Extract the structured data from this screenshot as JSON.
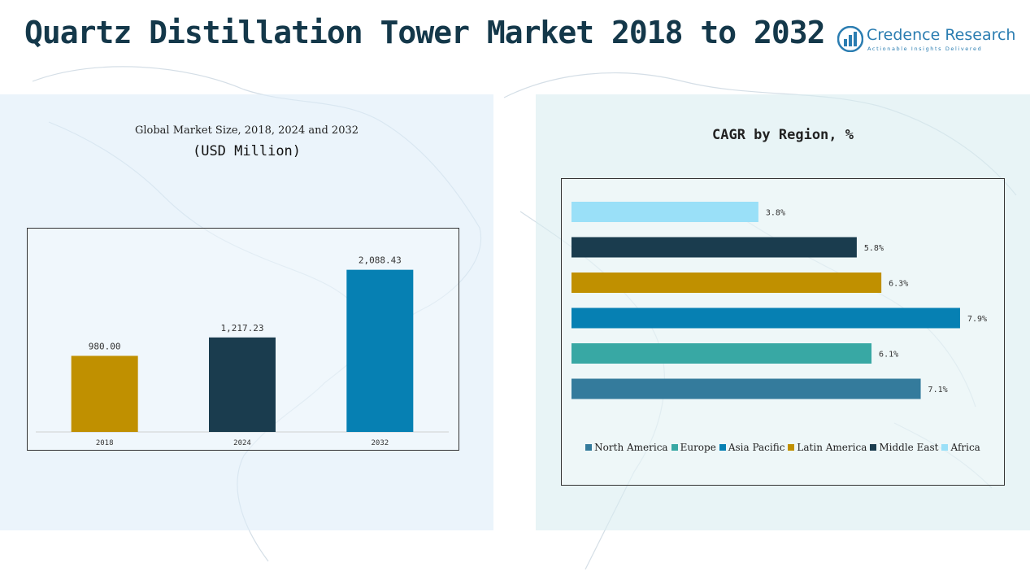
{
  "header": {
    "title": "Quartz Distillation Tower Market 2018 to 2032",
    "brand_name": "Credence Research",
    "brand_tagline": "Actionable Insights Delivered"
  },
  "colors": {
    "title": "#14384a",
    "brand": "#2b7db1",
    "left_panel": "#deecf8",
    "right_panel": "#d8ecf0"
  },
  "chart_data": [
    {
      "type": "bar",
      "title": "Global Market Size, 2018, 2024 and 2032",
      "subtitle": "(USD Million)",
      "categories": [
        "2018",
        "2024",
        "2032"
      ],
      "values": [
        980.0,
        1217.23,
        2088.43
      ],
      "value_labels": [
        "980.00",
        "1,217.23",
        "2,088.43"
      ],
      "colors": [
        "#c09000",
        "#1a3c4e",
        "#0680b3"
      ],
      "ylim": [
        0,
        2200
      ],
      "grid": false,
      "legend": "none"
    },
    {
      "type": "bar",
      "orientation": "horizontal",
      "title": "CAGR by Region, %",
      "categories": [
        "North America",
        "Europe",
        "Asia Pacific",
        "Latin America",
        "Middle East",
        "Africa"
      ],
      "values": [
        7.1,
        6.1,
        7.9,
        6.3,
        5.8,
        3.8
      ],
      "value_labels": [
        "7.1%",
        "6.1%",
        "7.9%",
        "6.3%",
        "5.8%",
        "3.8%"
      ],
      "colors": [
        "#347b9c",
        "#38a8a4",
        "#0680b3",
        "#c09000",
        "#1a3c4e",
        "#9ae0f8"
      ],
      "xlim": [
        0,
        8.0
      ],
      "grid": false,
      "legend": "bottom"
    }
  ]
}
